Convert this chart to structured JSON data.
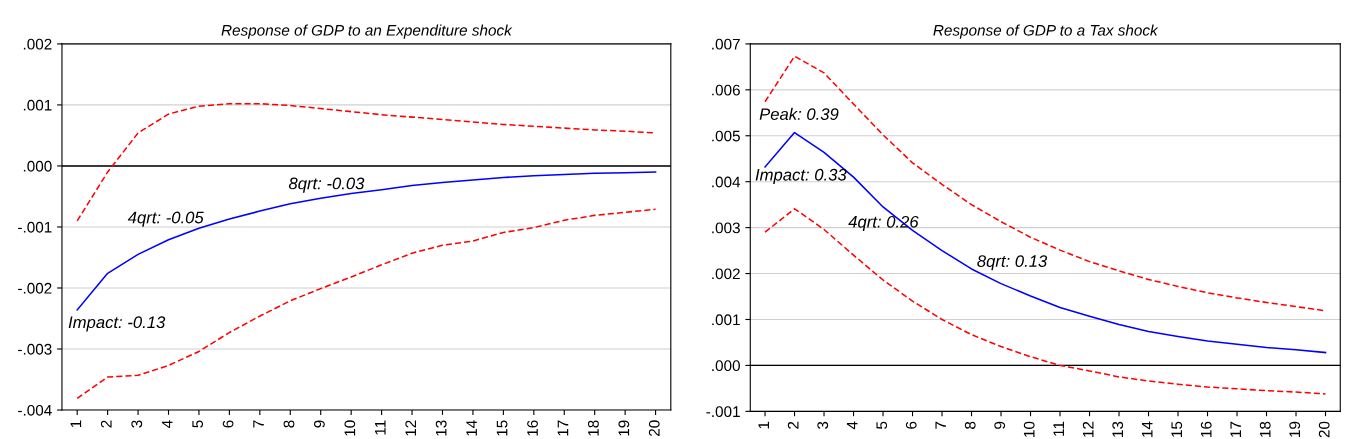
{
  "chart_data": [
    {
      "type": "line",
      "title": "Response of GDP to an Expenditure shock",
      "categories": [
        "1",
        "2",
        "3",
        "4",
        "5",
        "6",
        "7",
        "8",
        "9",
        "10",
        "11",
        "12",
        "13",
        "14",
        "15",
        "16",
        "17",
        "18",
        "19",
        "20"
      ],
      "series": [
        {
          "color": "#0000ff",
          "line_style": "solid",
          "values": [
            -0.00236,
            -0.00176,
            -0.00145,
            -0.00121,
            -0.00102,
            -0.00087,
            -0.00074,
            -0.00062,
            -0.00053,
            -0.00045,
            -0.00039,
            -0.00032,
            -0.00027,
            -0.00023,
            -0.00019,
            -0.00016,
            -0.00014,
            -0.00012,
            -0.00011,
            -0.0001
          ]
        },
        {
          "color": "#ff0000",
          "line_style": "dashed",
          "values": [
            -0.0009,
            -0.0001,
            0.00054,
            0.00085,
            0.00098,
            0.00102,
            0.00102,
            0.00099,
            0.00094,
            0.00089,
            0.00084,
            0.0008,
            0.00076,
            0.00072,
            0.00068,
            0.00065,
            0.00062,
            0.00059,
            0.00057,
            0.00054
          ]
        },
        {
          "color": "#ff0000",
          "line_style": "dashed",
          "values": [
            -0.00381,
            -0.00346,
            -0.00343,
            -0.00327,
            -0.00304,
            -0.00273,
            -0.00246,
            -0.00221,
            -0.00201,
            -0.00182,
            -0.00162,
            -0.00143,
            -0.0013,
            -0.00123,
            -0.00109,
            -0.00101,
            -0.00089,
            -0.00081,
            -0.00076,
            -0.00071
          ]
        }
      ],
      "ylim": [
        -0.004,
        0.002
      ],
      "yticks": [
        {
          "value": -0.004,
          "label": "-.004"
        },
        {
          "value": -0.003,
          "label": "-.003"
        },
        {
          "value": -0.002,
          "label": "-.002"
        },
        {
          "value": -0.001,
          "label": "-.001"
        },
        {
          "value": 0,
          "label": ".000"
        },
        {
          "value": 0.001,
          "label": ".001"
        },
        {
          "value": 0.002,
          "label": ".002"
        }
      ],
      "grid": "y",
      "legend": false,
      "ref_lines": [
        {
          "axis": "y",
          "value": 0,
          "color": "#000000"
        }
      ],
      "annotations": [
        "Impact: -0.13",
        "4qrt: -0.05",
        "8qrt: -0.03"
      ]
    },
    {
      "type": "line",
      "title": "Response of GDP to a Tax shock",
      "categories": [
        "1",
        "2",
        "3",
        "4",
        "5",
        "6",
        "7",
        "8",
        "9",
        "10",
        "11",
        "12",
        "13",
        "14",
        "15",
        "16",
        "17",
        "18",
        "19",
        "20"
      ],
      "series": [
        {
          "color": "#0000ff",
          "line_style": "solid",
          "values": [
            0.00432,
            0.00507,
            0.00464,
            0.0041,
            0.00345,
            0.00294,
            0.0025,
            0.0021,
            0.00178,
            0.00151,
            0.00126,
            0.00107,
            0.00089,
            0.00074,
            0.00063,
            0.00053,
            0.00046,
            0.00039,
            0.00034,
            0.00028
          ]
        },
        {
          "color": "#ff0000",
          "line_style": "dashed",
          "values": [
            0.00574,
            0.00673,
            0.00637,
            0.00569,
            0.00502,
            0.00441,
            0.00394,
            0.0035,
            0.00313,
            0.00279,
            0.00251,
            0.00226,
            0.00206,
            0.00187,
            0.00172,
            0.00158,
            0.00147,
            0.00137,
            0.00128,
            0.00119
          ]
        },
        {
          "color": "#ff0000",
          "line_style": "dashed",
          "values": [
            0.0029,
            0.00341,
            0.00296,
            0.0024,
            0.00186,
            0.0014,
            0.001,
            0.00067,
            0.00041,
            0.00019,
            0,
            -0.00012,
            -0.00025,
            -0.00034,
            -0.00041,
            -0.00047,
            -0.00051,
            -0.00055,
            -0.00058,
            -0.00062
          ]
        }
      ],
      "ylim": [
        -0.001,
        0.007
      ],
      "yticks": [
        {
          "value": -0.001,
          "label": "-.001"
        },
        {
          "value": 0,
          "label": ".000"
        },
        {
          "value": 0.001,
          "label": ".001"
        },
        {
          "value": 0.002,
          "label": ".002"
        },
        {
          "value": 0.003,
          "label": ".003"
        },
        {
          "value": 0.004,
          "label": ".004"
        },
        {
          "value": 0.005,
          "label": ".005"
        },
        {
          "value": 0.006,
          "label": ".006"
        },
        {
          "value": 0.007,
          "label": ".007"
        }
      ],
      "grid": "y",
      "legend": false,
      "ref_lines": [
        {
          "axis": "y",
          "value": 0,
          "color": "#000000"
        }
      ],
      "annotations": [
        "Peak: 0.39",
        "Impact: 0.33",
        "4qrt: 0.26",
        "8qrt: 0.13"
      ]
    }
  ]
}
